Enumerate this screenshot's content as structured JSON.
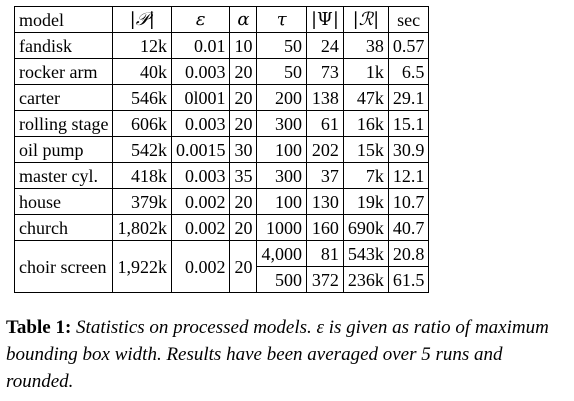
{
  "table": {
    "headers": [
      "model",
      "|𝒫|",
      "ε",
      "α",
      "τ",
      "|Ψ|",
      "|ℛ|",
      "sec"
    ],
    "rows": [
      {
        "model": "fandisk",
        "P": "12k",
        "eps": "0.01",
        "alpha": "10",
        "tau": "50",
        "psi": "24",
        "R": "38",
        "sec": "0.57"
      },
      {
        "model": "rocker arm",
        "P": "40k",
        "eps": "0.003",
        "alpha": "20",
        "tau": "50",
        "psi": "73",
        "R": "1k",
        "sec": "6.5"
      },
      {
        "model": "carter",
        "P": "546k",
        "eps": "0l001",
        "alpha": "20",
        "tau": "200",
        "psi": "138",
        "R": "47k",
        "sec": "29.1"
      },
      {
        "model": "rolling stage",
        "P": "606k",
        "eps": "0.003",
        "alpha": "20",
        "tau": "300",
        "psi": "61",
        "R": "16k",
        "sec": "15.1"
      },
      {
        "model": "oil pump",
        "P": "542k",
        "eps": "0.0015",
        "alpha": "30",
        "tau": "100",
        "psi": "202",
        "R": "15k",
        "sec": "30.9"
      },
      {
        "model": "master cyl.",
        "P": "418k",
        "eps": "0.003",
        "alpha": "35",
        "tau": "300",
        "psi": "37",
        "R": "7k",
        "sec": "12.1"
      },
      {
        "model": "house",
        "P": "379k",
        "eps": "0.002",
        "alpha": "20",
        "tau": "100",
        "psi": "130",
        "R": "19k",
        "sec": "10.7"
      },
      {
        "model": "church",
        "P": "1,802k",
        "eps": "0.002",
        "alpha": "20",
        "tau": "1000",
        "psi": "160",
        "R": "690k",
        "sec": "40.7"
      }
    ],
    "choir": {
      "model": "choir screen",
      "P": "1,922k",
      "eps": "0.002",
      "alpha": "20",
      "sub": [
        {
          "tau": "4,000",
          "psi": "81",
          "R": "543k",
          "sec": "20.8"
        },
        {
          "tau": "500",
          "psi": "372",
          "R": "236k",
          "sec": "61.5"
        }
      ]
    }
  },
  "caption": {
    "label": "Table 1:",
    "text": "Statistics on processed models. ε is given as ratio of maximum bounding box width. Results have been averaged over 5 runs and rounded."
  }
}
